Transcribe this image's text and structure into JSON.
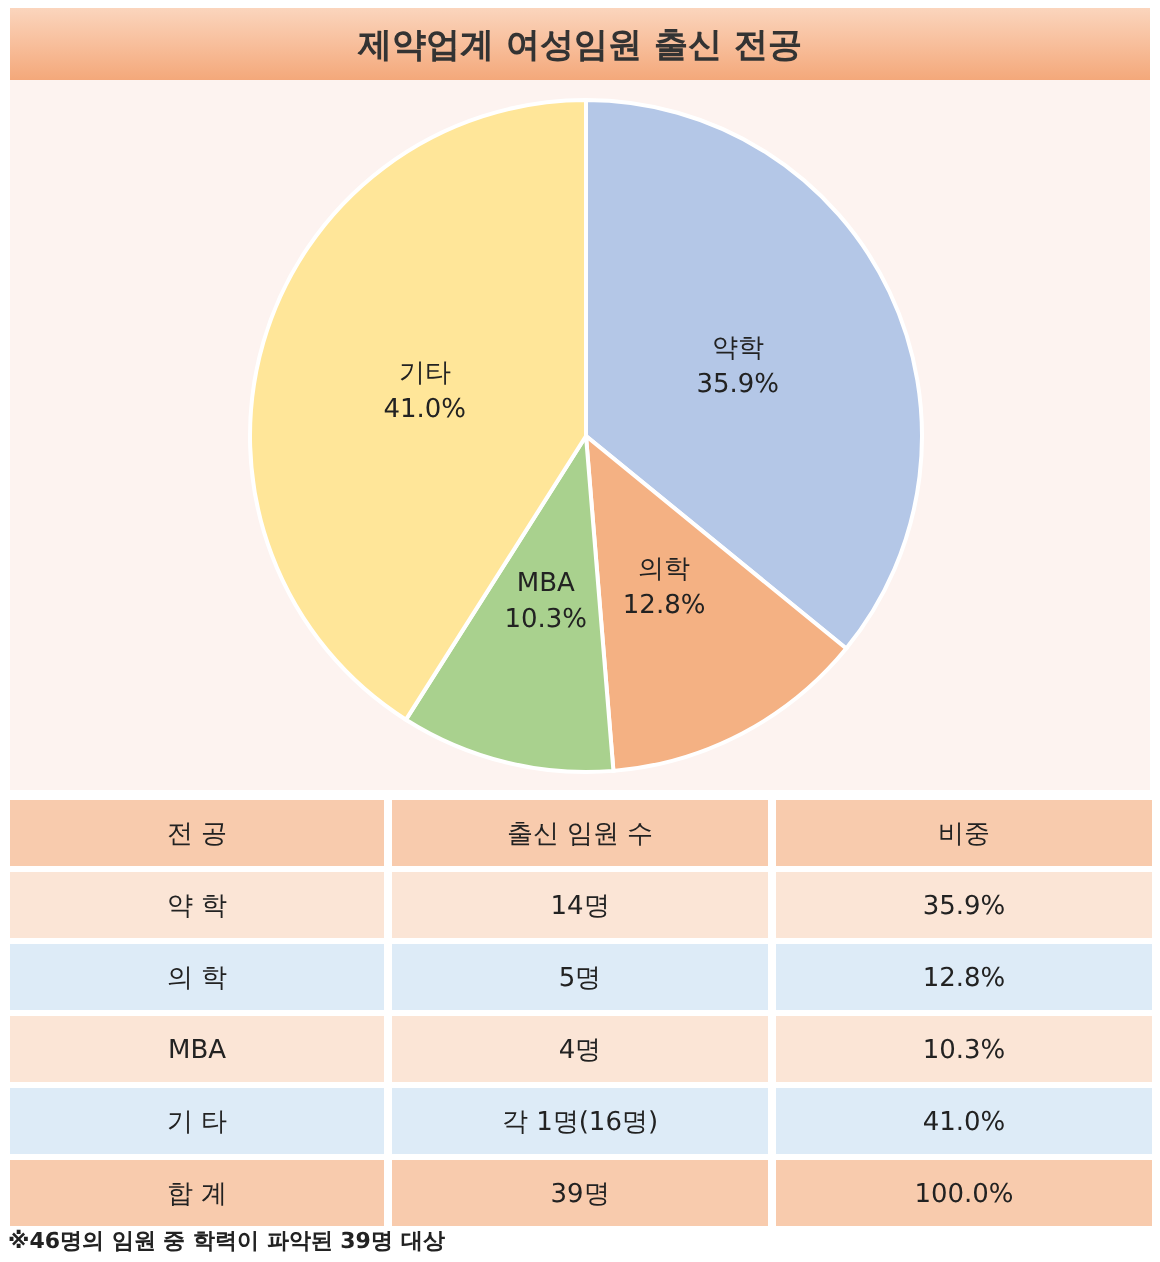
{
  "chart_data": [
    {
      "type": "pie",
      "title": "제약업계 여성임원 출신 전공",
      "categories": [
        "약학",
        "의학",
        "MBA",
        "기타"
      ],
      "values": [
        35.9,
        12.8,
        10.3,
        41.0
      ],
      "colors": [
        "#b4c7e7",
        "#f4b183",
        "#a9d18e",
        "#ffe699"
      ],
      "value_labels": [
        "35.9%",
        "12.8%",
        "10.3%",
        "41.0%"
      ]
    },
    {
      "type": "other",
      "annotations": [
        "전 공",
        "출신 임원 수",
        "비중",
        "약 학",
        "14명",
        "35.9%",
        "의 학",
        "5명",
        "12.8%",
        "MBA",
        "4명",
        "10.3%",
        "기 타",
        "각 1명(16명)",
        "41.0%",
        "합 계",
        "39명",
        "100.0%",
        "※46명의 임원 중 학력이 파악된 39명 대상"
      ]
    }
  ]
}
